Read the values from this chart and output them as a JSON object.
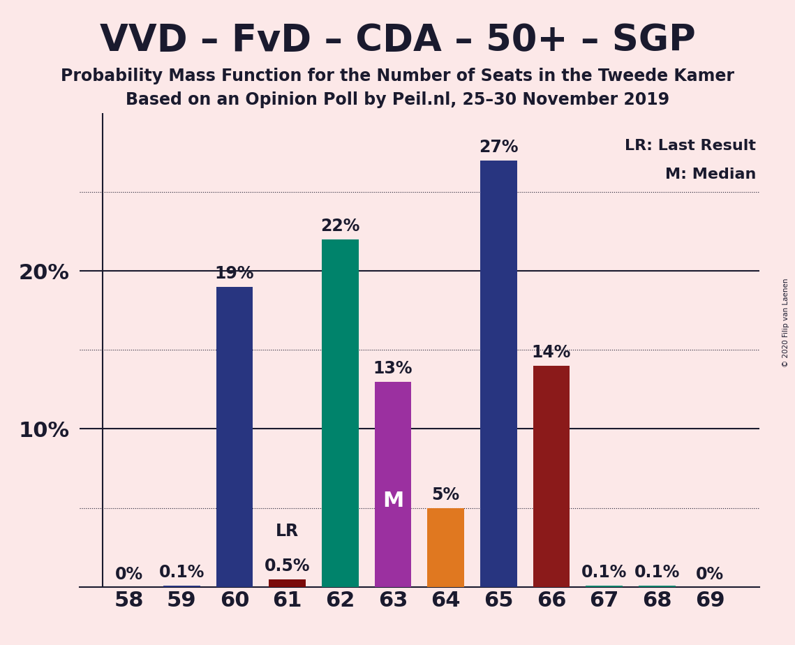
{
  "title": "VVD – FvD – CDA – 50+ – SGP",
  "subtitle1": "Probability Mass Function for the Number of Seats in the Tweede Kamer",
  "subtitle2": "Based on an Opinion Poll by Peil.nl, 25–30 November 2019",
  "copyright": "© 2020 Filip van Laenen",
  "legend_lr": "LR: Last Result",
  "legend_m": "M: Median",
  "background_color": "#fce8e8",
  "categories": [
    58,
    59,
    60,
    61,
    62,
    63,
    64,
    65,
    66,
    67,
    68,
    69
  ],
  "values": [
    0.0,
    0.1,
    19.0,
    0.5,
    22.0,
    13.0,
    5.0,
    27.0,
    14.0,
    0.1,
    0.1,
    0.0
  ],
  "colors": [
    "#283580",
    "#283580",
    "#283580",
    "#7a0a0a",
    "#00836b",
    "#9b30a0",
    "#e07820",
    "#283580",
    "#8b1a1a",
    "#00836b",
    "#00836b",
    "#283580"
  ],
  "bar_labels": [
    "0%",
    "0.1%",
    "19%",
    "0.5%",
    "22%",
    "13%",
    "5%",
    "27%",
    "14%",
    "0.1%",
    "0.1%",
    "0%"
  ],
  "label_dark": "#1a1a2e",
  "label_white": "#ffffff",
  "special_labels": {
    "61": "LR",
    "63": "M"
  },
  "ylim": [
    0,
    30
  ],
  "solid_hlines": [
    10,
    20
  ],
  "dotted_hlines": [
    5,
    15,
    25
  ],
  "ytick_positions": [
    10,
    20
  ],
  "ytick_labels": {
    "10": "10%",
    "20": "20%"
  },
  "grid_color": "#1a1a2e",
  "axis_color": "#1a1a2e",
  "title_fontsize": 38,
  "subtitle_fontsize": 17,
  "label_fontsize": 17,
  "tick_fontsize": 22,
  "bar_width": 0.7
}
